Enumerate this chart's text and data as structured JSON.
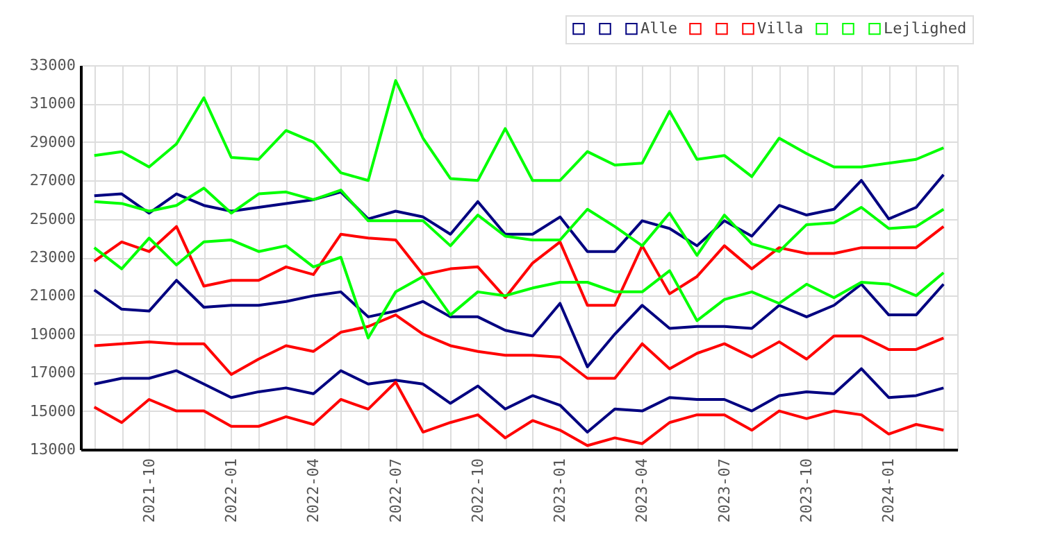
{
  "chart_data": {
    "type": "line",
    "categories": [
      null,
      null,
      "2021-10",
      null,
      null,
      "2022-01",
      null,
      null,
      "2022-04",
      null,
      null,
      "2022-07",
      null,
      null,
      "2022-10",
      null,
      null,
      "2023-01",
      null,
      null,
      "2023-04",
      null,
      null,
      "2023-07",
      null,
      null,
      "2023-10",
      null,
      null,
      "2024-01",
      null,
      null
    ],
    "series": [
      {
        "color": "#000080",
        "values": [
          16400,
          16700,
          16700,
          17100,
          16400,
          15700,
          16000,
          16200,
          15900,
          17100,
          16400,
          16600,
          16400,
          15400,
          16300,
          15100,
          15800,
          15300,
          13900,
          15100,
          15000,
          15700,
          15600,
          15600,
          15000,
          15800,
          16000,
          15900,
          17200,
          15700,
          15800,
          16200
        ]
      },
      {
        "color": "#000080",
        "values": [
          21300,
          20300,
          20200,
          21800,
          20400,
          20500,
          20500,
          20700,
          21000,
          21200,
          19900,
          20200,
          20700,
          19900,
          19900,
          19200,
          18900,
          20600,
          17300,
          19000,
          20500,
          19300,
          19400,
          19400,
          19300,
          20500,
          19900,
          20500,
          21600,
          20000,
          20000,
          21600
        ]
      },
      {
        "name": "Alle",
        "color": "#000080",
        "values": [
          26200,
          26300,
          25300,
          26300,
          25700,
          25400,
          25600,
          25800,
          26000,
          26400,
          25000,
          25400,
          25100,
          24200,
          25900,
          24200,
          24200,
          25100,
          23300,
          23300,
          24900,
          24500,
          23600,
          24900,
          24100,
          25700,
          25200,
          25500,
          27000,
          25000,
          25600,
          27300
        ]
      },
      {
        "color": "#ff0000",
        "values": [
          15200,
          14400,
          15600,
          15000,
          15000,
          14200,
          14200,
          14700,
          14300,
          15600,
          15100,
          16500,
          13900,
          14400,
          14800,
          13600,
          14500,
          14000,
          13200,
          13600,
          13300,
          14400,
          14800,
          14800,
          14000,
          15000,
          14600,
          15000,
          14800,
          13800,
          14300,
          14000
        ]
      },
      {
        "color": "#ff0000",
        "values": [
          18400,
          18500,
          18600,
          18500,
          18500,
          16900,
          17700,
          18400,
          18100,
          19100,
          19400,
          20000,
          19000,
          18400,
          18100,
          17900,
          17900,
          17800,
          16700,
          16700,
          18500,
          17200,
          18000,
          18500,
          17800,
          18600,
          17700,
          18900,
          18900,
          18200,
          18200,
          18800
        ]
      },
      {
        "name": "Villa",
        "color": "#ff0000",
        "values": [
          22800,
          23800,
          23300,
          24600,
          21500,
          21800,
          21800,
          22500,
          22100,
          24200,
          24000,
          23900,
          22100,
          22400,
          22500,
          20900,
          22700,
          23800,
          20500,
          20500,
          23600,
          21100,
          22000,
          23600,
          22400,
          23500,
          23200,
          23200,
          23500,
          23500,
          23500,
          24600
        ]
      },
      {
        "color": "#00ff00",
        "values": [
          23500,
          22400,
          24000,
          22600,
          23800,
          23900,
          23300,
          23600,
          22500,
          23000,
          18800,
          21200,
          22000,
          20000,
          21200,
          21000,
          21400,
          21700,
          21700,
          21200,
          21200,
          22300,
          19700,
          20800,
          21200,
          20600,
          21600,
          20900,
          21700,
          21600,
          21000,
          22200
        ]
      },
      {
        "color": "#00ff00",
        "values": [
          25900,
          25800,
          25400,
          25700,
          26600,
          25300,
          26300,
          26400,
          26000,
          26500,
          24900,
          24900,
          24900,
          23600,
          25200,
          24100,
          23900,
          23900,
          25500,
          24600,
          23600,
          25300,
          23100,
          25200,
          23700,
          23300,
          24700,
          24800,
          25600,
          24500,
          24600,
          25500
        ]
      },
      {
        "name": "Lejlighed",
        "color": "#00ff00",
        "values": [
          28300,
          28500,
          27700,
          28900,
          31300,
          28200,
          28100,
          29600,
          29000,
          27400,
          27000,
          32200,
          29200,
          27100,
          27000,
          29700,
          27000,
          27000,
          28500,
          27800,
          27900,
          30600,
          28100,
          28300,
          27200,
          29200,
          28400,
          27700,
          27700,
          27900,
          28100,
          28700
        ]
      }
    ],
    "ylim": [
      13000,
      33000
    ],
    "yticks": [
      13000,
      15000,
      17000,
      19000,
      21000,
      23000,
      25000,
      27000,
      29000,
      31000,
      33000
    ],
    "grid": true,
    "legend": "top right",
    "marker": "none",
    "line_style": "solid"
  }
}
